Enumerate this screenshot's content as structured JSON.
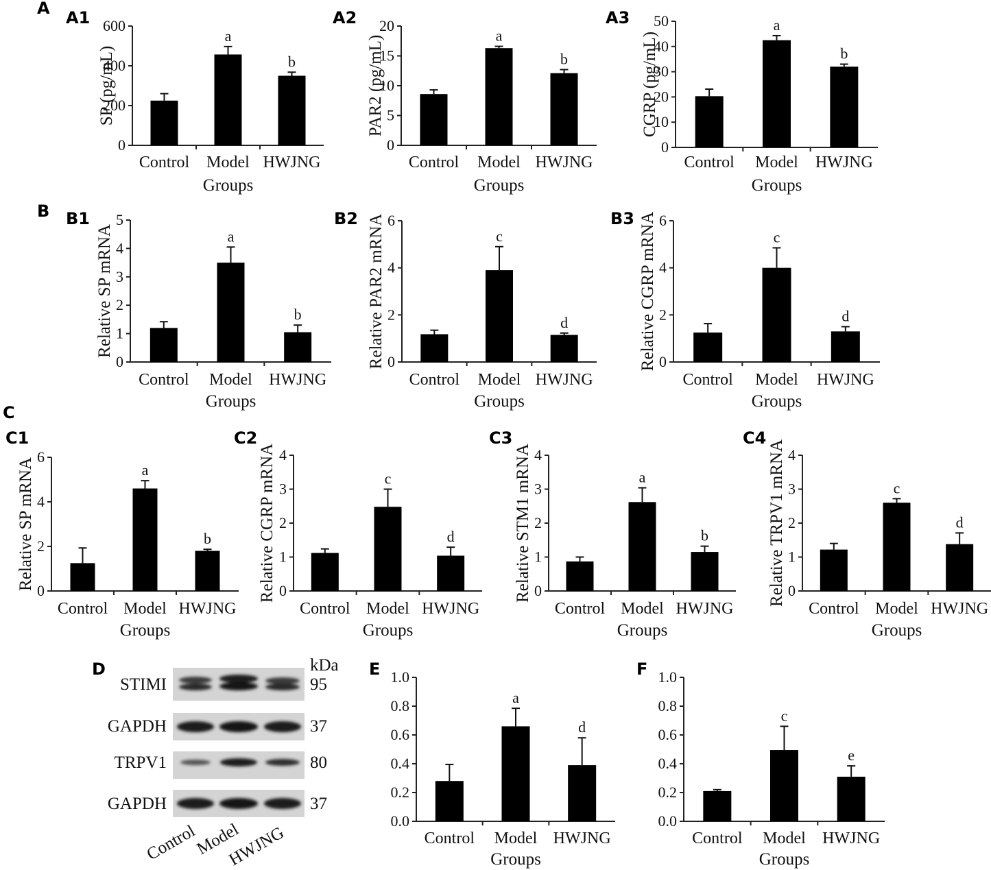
{
  "figure_labels": {
    "A": "A",
    "B": "B",
    "C": "C",
    "D": "D",
    "E": "E",
    "F": "F"
  },
  "chart_data": [
    {
      "id": "A1",
      "type": "bar",
      "panel_label": "A1",
      "categories": [
        "Control",
        "Model",
        "HWJNG"
      ],
      "values": [
        225,
        457,
        350
      ],
      "errors": [
        35,
        40,
        18
      ],
      "annotations": [
        "",
        "a",
        "b"
      ],
      "ylabel": "SP (pg/mL)",
      "xlabel": "Groups",
      "ylim": [
        0,
        600
      ],
      "yticks": [
        "0",
        "200",
        "400",
        "600"
      ]
    },
    {
      "id": "A2",
      "type": "bar",
      "panel_label": "A2",
      "categories": [
        "Control",
        "Model",
        "HWJNG"
      ],
      "values": [
        8.6,
        16.3,
        12.1
      ],
      "errors": [
        0.7,
        0.3,
        0.6
      ],
      "annotations": [
        "",
        "a",
        "b"
      ],
      "ylabel": "PAR2 (pg/mL)",
      "xlabel": "Groups",
      "ylim": [
        0,
        20
      ],
      "yticks": [
        "0",
        "5",
        "10",
        "15",
        "20"
      ]
    },
    {
      "id": "A3",
      "type": "bar",
      "panel_label": "A3",
      "categories": [
        "Control",
        "Model",
        "HWJNG"
      ],
      "values": [
        20.3,
        42.5,
        32.0
      ],
      "errors": [
        2.8,
        1.8,
        1.0
      ],
      "annotations": [
        "",
        "a",
        "b"
      ],
      "ylabel": "CGRP (pg/mL)",
      "xlabel": "Groups",
      "ylim": [
        0,
        50
      ],
      "yticks": [
        "0",
        "10",
        "20",
        "30",
        "40",
        "50"
      ]
    },
    {
      "id": "B1",
      "type": "bar",
      "panel_label": "B1",
      "categories": [
        "Control",
        "Model",
        "HWJNG"
      ],
      "values": [
        1.2,
        3.5,
        1.05
      ],
      "errors": [
        0.22,
        0.55,
        0.25
      ],
      "annotations": [
        "",
        "a",
        "b"
      ],
      "ylabel": "Relative SP mRNA",
      "xlabel": "Groups",
      "ylim": [
        0,
        5
      ],
      "yticks": [
        "0",
        "1",
        "2",
        "3",
        "4",
        "5"
      ]
    },
    {
      "id": "B2",
      "type": "bar",
      "panel_label": "B2",
      "categories": [
        "Control",
        "Model",
        "HWJNG"
      ],
      "values": [
        1.18,
        3.9,
        1.15
      ],
      "errors": [
        0.17,
        1.0,
        0.08
      ],
      "annotations": [
        "",
        "c",
        "d"
      ],
      "ylabel": "Relative PAR2 mRNA",
      "xlabel": "Groups",
      "ylim": [
        0,
        6
      ],
      "yticks": [
        "0",
        "2",
        "4",
        "6"
      ]
    },
    {
      "id": "B3",
      "type": "bar",
      "panel_label": "B3",
      "categories": [
        "Control",
        "Model",
        "HWJNG"
      ],
      "values": [
        1.25,
        4.0,
        1.3
      ],
      "errors": [
        0.38,
        0.85,
        0.2
      ],
      "annotations": [
        "",
        "c",
        "d"
      ],
      "ylabel": "Relative CGRP mRNA",
      "xlabel": "Groups",
      "ylim": [
        0,
        6
      ],
      "yticks": [
        "0",
        "2",
        "4",
        "6"
      ]
    },
    {
      "id": "C1",
      "type": "bar",
      "panel_label": "C1",
      "categories": [
        "Control",
        "Model",
        "HWJNG"
      ],
      "values": [
        1.25,
        4.6,
        1.8
      ],
      "errors": [
        0.68,
        0.35,
        0.07
      ],
      "annotations": [
        "",
        "a",
        "b"
      ],
      "ylabel": "Relative SP mRNA",
      "xlabel": "Groups",
      "ylim": [
        0,
        6
      ],
      "yticks": [
        "0",
        "2",
        "4",
        "6"
      ]
    },
    {
      "id": "C2",
      "type": "bar",
      "panel_label": "C2",
      "categories": [
        "Control",
        "Model",
        "HWJNG"
      ],
      "values": [
        1.12,
        2.48,
        1.04
      ],
      "errors": [
        0.12,
        0.52,
        0.25
      ],
      "annotations": [
        "",
        "c",
        "d"
      ],
      "ylabel": "Relative CGRP mRNA",
      "xlabel": "Groups",
      "ylim": [
        0,
        4
      ],
      "yticks": [
        "0",
        "1",
        "2",
        "3",
        "4"
      ]
    },
    {
      "id": "C3",
      "type": "bar",
      "panel_label": "C3",
      "categories": [
        "Control",
        "Model",
        "HWJNG"
      ],
      "values": [
        0.87,
        2.62,
        1.15
      ],
      "errors": [
        0.13,
        0.42,
        0.17
      ],
      "annotations": [
        "",
        "a",
        "b"
      ],
      "ylabel": "Relative STM1 mRNA",
      "xlabel": "Groups",
      "ylim": [
        0,
        4
      ],
      "yticks": [
        "0",
        "1",
        "2",
        "3",
        "4"
      ]
    },
    {
      "id": "C4",
      "type": "bar",
      "panel_label": "C4",
      "categories": [
        "Control",
        "Model",
        "HWJNG"
      ],
      "values": [
        1.22,
        2.6,
        1.38
      ],
      "errors": [
        0.18,
        0.12,
        0.33
      ],
      "annotations": [
        "",
        "c",
        "d"
      ],
      "ylabel": "Relative TRPV1 mRNA",
      "xlabel": "Groups",
      "ylim": [
        0,
        4
      ],
      "yticks": [
        "0",
        "1",
        "2",
        "3",
        "4"
      ]
    },
    {
      "id": "E",
      "type": "bar",
      "panel_label": "",
      "categories": [
        "Control",
        "Model",
        "HWJNG"
      ],
      "values": [
        0.28,
        0.66,
        0.39
      ],
      "errors": [
        0.115,
        0.125,
        0.19
      ],
      "annotations": [
        "",
        "a",
        "d"
      ],
      "ylabel": "",
      "xlabel": "Groups",
      "ylim": [
        0,
        1.0
      ],
      "yticks": [
        "0.0",
        "0.2",
        "0.4",
        "0.6",
        "0.8",
        "1.0"
      ]
    },
    {
      "id": "F",
      "type": "bar",
      "panel_label": "",
      "categories": [
        "Control",
        "Model",
        "HWJNG"
      ],
      "values": [
        0.21,
        0.495,
        0.31
      ],
      "errors": [
        0.01,
        0.165,
        0.075
      ],
      "annotations": [
        "",
        "c",
        "e"
      ],
      "ylabel": "",
      "xlabel": "Groups",
      "ylim": [
        0,
        1.0
      ],
      "yticks": [
        "0.0",
        "0.2",
        "0.4",
        "0.6",
        "0.8",
        "1.0"
      ]
    }
  ],
  "western_blot": {
    "unit_label": "kDa",
    "rows": [
      {
        "protein": "STIMI",
        "kda": "95"
      },
      {
        "protein": "GAPDH",
        "kda": "37"
      },
      {
        "protein": "TRPV1",
        "kda": "80"
      },
      {
        "protein": "GAPDH",
        "kda": "37"
      }
    ],
    "lanes": [
      "Control",
      "Model",
      "HWJNG"
    ]
  }
}
